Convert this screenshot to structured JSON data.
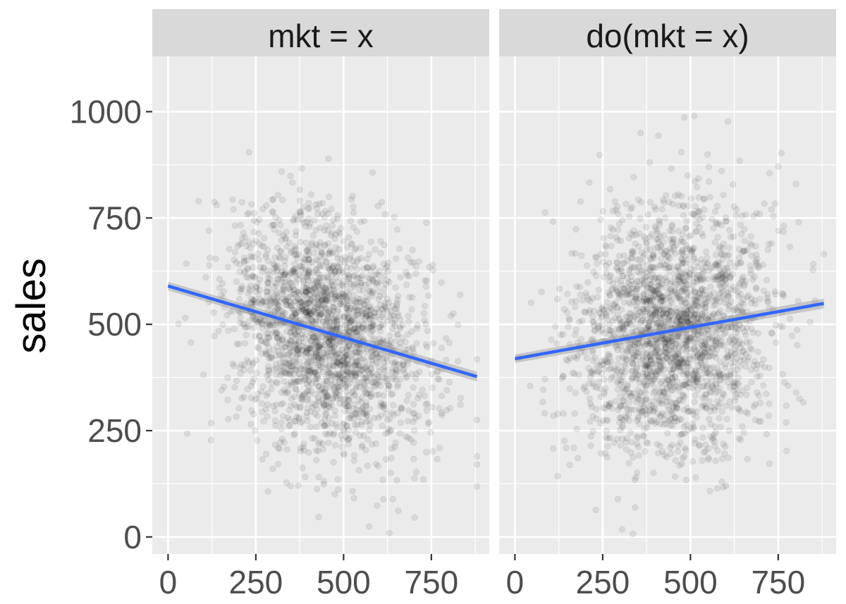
{
  "chart_data": {
    "type": "scatter",
    "facets": [
      {
        "label": "mkt = x",
        "fit": {
          "x": [
            0,
            880
          ],
          "y": [
            590,
            377
          ]
        },
        "cloud": {
          "x_mean": 450,
          "x_sd": 140,
          "y_mean": 479,
          "y_sd": 135,
          "slope": -0.24,
          "n": 2200,
          "seed": 7
        }
      },
      {
        "label": "do(mkt = x)",
        "fit": {
          "x": [
            0,
            880
          ],
          "y": [
            419,
            549
          ]
        },
        "cloud": {
          "x_mean": 450,
          "x_sd": 140,
          "y_mean": 485,
          "y_sd": 140,
          "slope": 0.15,
          "n": 2200,
          "seed": 13
        }
      }
    ],
    "ylabel": "sales",
    "xlabel": "",
    "xlim": [
      -45,
      915
    ],
    "ylim": [
      -40,
      1130
    ],
    "x_ticks": [
      0,
      250,
      500,
      750
    ],
    "y_ticks": [
      0,
      250,
      500,
      750,
      1000
    ],
    "x_tick_labels": [
      "0",
      "250",
      "500",
      "750"
    ],
    "y_tick_labels": [
      "0",
      "250",
      "500",
      "750",
      "1000"
    ],
    "grid": true,
    "colors": {
      "point": "#000000",
      "fit_line": "#3366ff",
      "fit_band": "#999999",
      "panel_bg": "#ebebeb",
      "strip_bg": "#d9d9d9",
      "grid": "#ffffff"
    }
  }
}
